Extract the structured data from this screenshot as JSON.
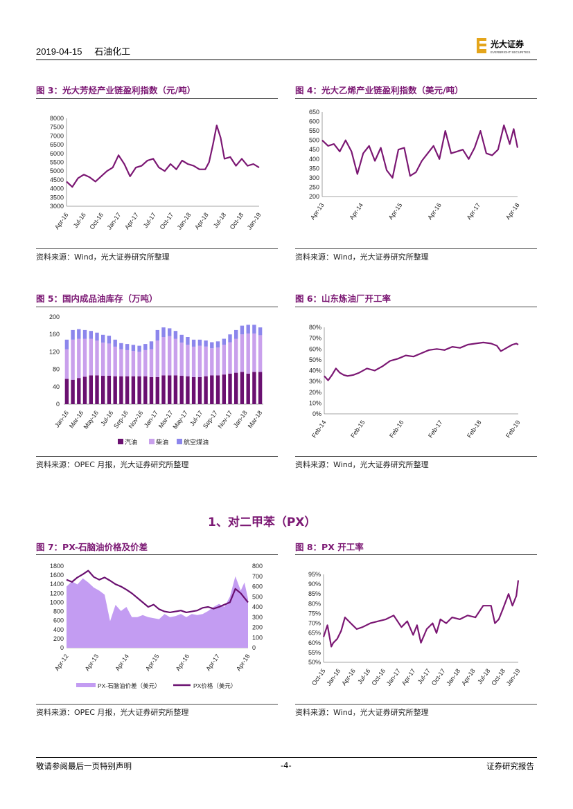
{
  "header": {
    "date": "2019-04-15",
    "sector": "石油化工",
    "logo_text": "光大证券",
    "logo_sub": "EVERBRIGHT SECURITIES"
  },
  "section_heading": "1、对二甲苯（PX）",
  "footer": {
    "left": "敬请参阅最后一页特别声明",
    "page": "-4-",
    "right": "证券研究报告"
  },
  "figures": {
    "fig3": {
      "title": "图 3：光大芳烃产业链盈利指数（元/吨）",
      "source": "资料来源：Wind，光大证券研究所整理"
    },
    "fig4": {
      "title": "图 4：光大乙烯产业链盈利指数（美元/吨）",
      "source": "资料来源：Wind，光大证券研究所整理"
    },
    "fig5": {
      "title": "图 5：国内成品油库存（万吨）",
      "source": "资料来源：OPEC 月报，光大证券研究所整理"
    },
    "fig6": {
      "title": "图 6：山东炼油厂开工率",
      "source": "资料来源：Wind，光大证券研究所整理"
    },
    "fig7": {
      "title": "图 7：PX-石脑油价格及价差",
      "source": "资料来源：OPEC 月报，光大证券研究所整理"
    },
    "fig8": {
      "title": "图 8：PX 开工率",
      "source": "资料来源：Wind，光大证券研究所整理"
    }
  },
  "chart_data": [
    {
      "id": "fig3",
      "type": "line",
      "title": "光大芳烃产业链盈利指数（元/吨）",
      "ylim": [
        3000,
        8000
      ],
      "yticks": [
        "8000",
        "7500",
        "7000",
        "6500",
        "6000",
        "5500",
        "5000",
        "4500",
        "4000",
        "3500",
        "3000"
      ],
      "xticks": [
        "Apr-16",
        "Jul-16",
        "Oct-16",
        "Jan-17",
        "Apr-17",
        "Jul-17",
        "Oct-17",
        "Jan-18",
        "Apr-18",
        "Jul-18",
        "Oct-18",
        "Jan-19"
      ],
      "color": "#7b1773",
      "x": [
        0,
        0.03,
        0.06,
        0.09,
        0.12,
        0.15,
        0.18,
        0.21,
        0.24,
        0.27,
        0.3,
        0.33,
        0.36,
        0.39,
        0.42,
        0.45,
        0.48,
        0.51,
        0.54,
        0.57,
        0.6,
        0.63,
        0.66,
        0.69,
        0.72,
        0.74,
        0.76,
        0.78,
        0.8,
        0.82,
        0.85,
        0.88,
        0.91,
        0.94,
        0.97,
        1.0
      ],
      "values": [
        4400,
        4100,
        4600,
        4800,
        4650,
        4400,
        4700,
        5000,
        5200,
        5900,
        5400,
        4700,
        5200,
        5300,
        5600,
        5700,
        5200,
        5000,
        5400,
        5100,
        5600,
        5400,
        5300,
        5100,
        5100,
        5500,
        6500,
        7600,
        6900,
        5700,
        5800,
        5300,
        5700,
        5300,
        5400,
        5200
      ]
    },
    {
      "id": "fig4",
      "type": "line",
      "title": "光大乙烯产业链盈利指数（美元/吨）",
      "ylim": [
        200,
        650
      ],
      "yticks": [
        "650",
        "600",
        "550",
        "500",
        "450",
        "400",
        "350",
        "300",
        "250",
        "200"
      ],
      "xticks": [
        "Apr-13",
        "Apr-14",
        "Apr-15",
        "Apr-16",
        "Apr-17",
        "Apr-18"
      ],
      "color": "#7b1773",
      "x": [
        0,
        0.03,
        0.06,
        0.09,
        0.12,
        0.15,
        0.18,
        0.21,
        0.24,
        0.27,
        0.3,
        0.33,
        0.36,
        0.39,
        0.42,
        0.45,
        0.48,
        0.51,
        0.54,
        0.57,
        0.6,
        0.63,
        0.66,
        0.69,
        0.72,
        0.75,
        0.78,
        0.81,
        0.84,
        0.87,
        0.9,
        0.93,
        0.96,
        0.98,
        1.0
      ],
      "values": [
        500,
        470,
        480,
        440,
        500,
        440,
        320,
        430,
        470,
        390,
        460,
        340,
        300,
        450,
        460,
        310,
        330,
        390,
        430,
        470,
        400,
        550,
        430,
        440,
        450,
        400,
        460,
        550,
        430,
        420,
        450,
        580,
        480,
        560,
        460
      ]
    },
    {
      "id": "fig5",
      "type": "bar",
      "stacked": true,
      "title": "国内成品油库存（万吨）",
      "ylim": [
        0,
        200
      ],
      "yticks": [
        "200",
        "160",
        "120",
        "80",
        "40",
        "0"
      ],
      "xticks": [
        "Jan-16",
        "Mar-16",
        "May-16",
        "Jul-16",
        "Sep-16",
        "Nov-16",
        "Jan-17",
        "Mar-17",
        "May-17",
        "Jul-17",
        "Sep-17",
        "Nov-17",
        "Jan-18",
        "Mar-18"
      ],
      "series": [
        {
          "name": "汽油",
          "color": "#6a1070",
          "values": [
            58,
            56,
            60,
            63,
            66,
            66,
            65,
            65,
            64,
            64,
            64,
            64,
            64,
            64,
            62,
            62,
            66,
            66,
            66,
            65,
            64,
            62,
            62,
            64,
            66,
            66,
            68,
            70,
            72,
            74,
            70,
            74,
            74
          ]
        },
        {
          "name": "柴油",
          "color": "#c9a0ec",
          "values": [
            68,
            92,
            90,
            87,
            84,
            80,
            76,
            74,
            68,
            62,
            60,
            58,
            56,
            60,
            64,
            84,
            88,
            90,
            84,
            76,
            72,
            70,
            72,
            68,
            62,
            64,
            68,
            72,
            78,
            86,
            92,
            88,
            84
          ]
        },
        {
          "name": "航空煤油",
          "color": "#8c86ec",
          "values": [
            22,
            22,
            22,
            20,
            18,
            18,
            18,
            18,
            16,
            14,
            14,
            14,
            14,
            14,
            18,
            24,
            22,
            18,
            18,
            18,
            18,
            16,
            14,
            14,
            14,
            14,
            14,
            18,
            20,
            20,
            20,
            20,
            18
          ]
        }
      ]
    },
    {
      "id": "fig6",
      "type": "line",
      "title": "山东炼油厂开工率",
      "ylim": [
        0,
        80
      ],
      "yticks": [
        "80%",
        "70%",
        "60%",
        "50%",
        "40%",
        "30%",
        "20%",
        "10%",
        "0%"
      ],
      "xticks": [
        "Feb-14",
        "Feb-15",
        "Feb-16",
        "Feb-17",
        "Feb-18",
        "Feb-19"
      ],
      "color": "#7b1773",
      "x": [
        0,
        0.02,
        0.04,
        0.06,
        0.08,
        0.1,
        0.12,
        0.15,
        0.18,
        0.22,
        0.26,
        0.3,
        0.34,
        0.38,
        0.42,
        0.46,
        0.5,
        0.54,
        0.58,
        0.62,
        0.66,
        0.7,
        0.74,
        0.78,
        0.82,
        0.86,
        0.89,
        0.91,
        0.93,
        0.95,
        0.97,
        0.99,
        1.0
      ],
      "values": [
        35,
        31,
        36,
        42,
        38,
        36,
        35,
        36,
        38,
        42,
        40,
        44,
        49,
        51,
        54,
        53,
        56,
        59,
        60,
        59,
        62,
        61,
        64,
        65,
        66,
        65,
        63,
        58,
        60,
        62,
        64,
        65,
        64
      ]
    },
    {
      "id": "fig7",
      "type": "area+line",
      "title": "PX-石脑油价格及价差",
      "ylim": [
        0,
        1800
      ],
      "ylim_right": [
        0,
        800
      ],
      "yticks": [
        "1800",
        "1600",
        "1400",
        "1200",
        "1000",
        "800",
        "600",
        "400",
        "200",
        "0"
      ],
      "yticks_right": [
        "800",
        "700",
        "600",
        "500",
        "400",
        "300",
        "200",
        "100",
        "0"
      ],
      "xticks": [
        "Apr-12",
        "Apr-13",
        "Apr-14",
        "Apr-15",
        "Apr-16",
        "Apr-17",
        "Apr-18"
      ],
      "x": [
        0,
        0.03,
        0.06,
        0.09,
        0.12,
        0.15,
        0.18,
        0.21,
        0.24,
        0.27,
        0.3,
        0.33,
        0.36,
        0.39,
        0.42,
        0.45,
        0.48,
        0.51,
        0.54,
        0.57,
        0.6,
        0.63,
        0.66,
        0.69,
        0.72,
        0.75,
        0.78,
        0.81,
        0.84,
        0.87,
        0.9,
        0.93,
        0.96,
        0.98,
        1.0
      ],
      "series": [
        {
          "name": "PX-石脑油价差（美元）",
          "color": "#c39cf2",
          "axis": "right",
          "values": [
            600,
            650,
            620,
            680,
            640,
            590,
            560,
            520,
            260,
            420,
            360,
            400,
            300,
            300,
            320,
            300,
            290,
            280,
            330,
            300,
            310,
            330,
            300,
            330,
            320,
            330,
            360,
            400,
            430,
            400,
            500,
            700,
            560,
            640,
            480
          ]
        },
        {
          "name": "PX价格（美元）",
          "color": "#6a1070",
          "axis": "left",
          "values": [
            1500,
            1450,
            1550,
            1620,
            1700,
            1560,
            1500,
            1550,
            1480,
            1400,
            1350,
            1280,
            1200,
            1100,
            1000,
            900,
            950,
            850,
            800,
            780,
            800,
            820,
            780,
            800,
            820,
            880,
            900,
            860,
            900,
            950,
            1000,
            1300,
            1200,
            1100,
            1000
          ]
        }
      ]
    },
    {
      "id": "fig8",
      "type": "line",
      "title": "PX 开工率",
      "ylim": [
        50,
        95
      ],
      "yticks": [
        "95%",
        "90%",
        "85%",
        "80%",
        "75%",
        "70%",
        "65%",
        "60%",
        "55%",
        "50%"
      ],
      "xticks": [
        "Oct-15",
        "Jan-16",
        "Apr-16",
        "Jul-16",
        "Oct-16",
        "Jan-17",
        "Apr-17",
        "Jul-17",
        "Oct-17",
        "Jan-18",
        "Apr-18",
        "Jul-18",
        "Oct-18",
        "Jan-19"
      ],
      "color": "#7b1773",
      "x": [
        0,
        0.02,
        0.04,
        0.05,
        0.07,
        0.09,
        0.11,
        0.14,
        0.17,
        0.2,
        0.24,
        0.28,
        0.32,
        0.36,
        0.4,
        0.43,
        0.46,
        0.48,
        0.5,
        0.53,
        0.56,
        0.58,
        0.6,
        0.63,
        0.66,
        0.7,
        0.74,
        0.78,
        0.82,
        0.86,
        0.88,
        0.9,
        0.92,
        0.95,
        0.97,
        0.99,
        1.0
      ],
      "values": [
        63,
        69,
        58,
        60,
        62,
        66,
        73,
        70,
        67,
        68,
        70,
        71,
        72,
        74,
        68,
        71,
        64,
        69,
        60,
        67,
        70,
        65,
        72,
        70,
        73,
        72,
        74,
        73,
        79,
        79,
        70,
        72,
        77,
        85,
        79,
        84,
        92
      ]
    }
  ],
  "legends": {
    "fig5": [
      "汽油",
      "柴油",
      "航空煤油"
    ],
    "fig7": [
      "PX-石脑油价差（美元）",
      "PX价格（美元）"
    ]
  },
  "colors": {
    "accent": "#7b1773",
    "rule": "#444444"
  }
}
